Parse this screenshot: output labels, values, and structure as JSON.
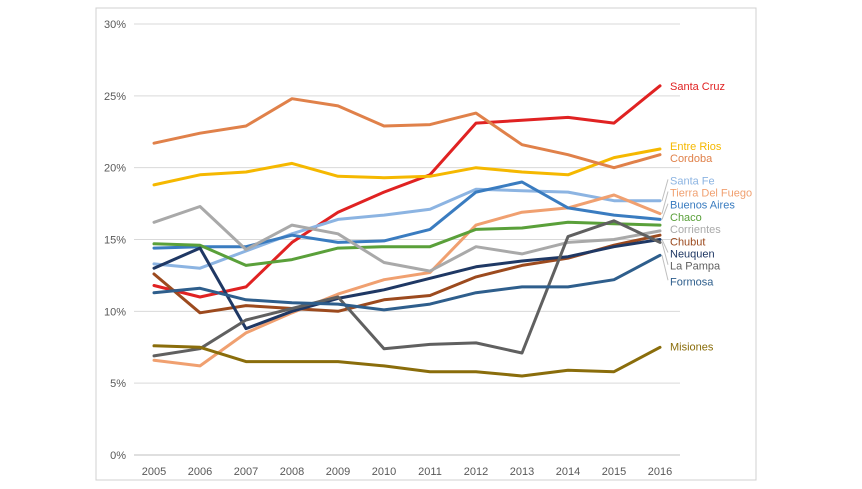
{
  "chart_data": {
    "type": "line",
    "title": "",
    "xlabel": "",
    "ylabel": "",
    "x": [
      "2005",
      "2006",
      "2007",
      "2008",
      "2009",
      "2010",
      "2011",
      "2012",
      "2013",
      "2014",
      "2015",
      "2016"
    ],
    "ylim": [
      0,
      30
    ],
    "yticks": [
      0,
      5,
      10,
      15,
      20,
      25,
      30
    ],
    "ytick_labels": [
      "0%",
      "5%",
      "10%",
      "15%",
      "20%",
      "25%",
      "30%"
    ],
    "grid": true,
    "legend": "labels at line ends (right)",
    "series": [
      {
        "name": "Santa Cruz",
        "color": "#e02222",
        "values": [
          11.8,
          11.0,
          11.7,
          14.8,
          16.9,
          18.3,
          19.5,
          23.1,
          23.3,
          23.5,
          23.1,
          25.7
        ]
      },
      {
        "name": "Entre Rios",
        "color": "#f5b800",
        "values": [
          18.8,
          19.5,
          19.7,
          20.3,
          19.4,
          19.3,
          19.4,
          20.0,
          19.7,
          19.5,
          20.7,
          21.3
        ]
      },
      {
        "name": "Cordoba",
        "color": "#e0814a",
        "values": [
          21.7,
          22.4,
          22.9,
          24.8,
          24.3,
          22.9,
          23.0,
          23.8,
          21.6,
          20.9,
          20.0,
          20.9
        ]
      },
      {
        "name": "Santa Fe",
        "color": "#8cb4e2",
        "values": [
          13.3,
          13.0,
          14.2,
          15.4,
          16.4,
          16.7,
          17.1,
          18.5,
          18.4,
          18.3,
          17.7,
          17.7
        ]
      },
      {
        "name": "Tierra Del Fuego",
        "color": "#f0a070",
        "values": [
          6.6,
          6.2,
          8.5,
          9.9,
          11.2,
          12.2,
          12.7,
          16.0,
          16.9,
          17.2,
          18.1,
          16.8
        ]
      },
      {
        "name": "Buenos Aires",
        "color": "#3a7cc0",
        "values": [
          14.4,
          14.5,
          14.5,
          15.3,
          14.8,
          14.9,
          15.7,
          18.3,
          19.0,
          17.2,
          16.7,
          16.4
        ]
      },
      {
        "name": "Chaco",
        "color": "#5aa03a",
        "values": [
          14.7,
          14.6,
          13.2,
          13.6,
          14.4,
          14.5,
          14.5,
          15.7,
          15.8,
          16.2,
          16.1,
          16.0
        ]
      },
      {
        "name": "Corrientes",
        "color": "#a9a9a9",
        "values": [
          16.2,
          17.3,
          14.3,
          16.0,
          15.4,
          13.4,
          12.8,
          14.5,
          14.0,
          14.8,
          15.0,
          15.6
        ]
      },
      {
        "name": "Chubut",
        "color": "#9c4a1e",
        "values": [
          12.6,
          9.9,
          10.4,
          10.2,
          10.0,
          10.8,
          11.1,
          12.4,
          13.2,
          13.7,
          14.6,
          15.3
        ]
      },
      {
        "name": "Neuquen",
        "color": "#1f3864",
        "values": [
          13.0,
          14.4,
          8.8,
          10.0,
          10.9,
          11.5,
          12.3,
          13.1,
          13.5,
          13.8,
          14.5,
          15.0
        ]
      },
      {
        "name": "La Pampa",
        "color": "#606060",
        "values": [
          6.9,
          7.4,
          9.4,
          10.2,
          11.0,
          7.4,
          7.7,
          7.8,
          7.1,
          15.2,
          16.3,
          14.8
        ]
      },
      {
        "name": "Formosa",
        "color": "#2e5e8c",
        "values": [
          11.3,
          11.6,
          10.8,
          10.6,
          10.5,
          10.1,
          10.5,
          11.3,
          11.7,
          11.7,
          12.2,
          13.9
        ]
      },
      {
        "name": "Misiones",
        "color": "#8a6d0b",
        "values": [
          7.6,
          7.5,
          6.5,
          6.5,
          6.5,
          6.2,
          5.8,
          5.8,
          5.5,
          5.9,
          5.8,
          7.5
        ]
      }
    ]
  }
}
